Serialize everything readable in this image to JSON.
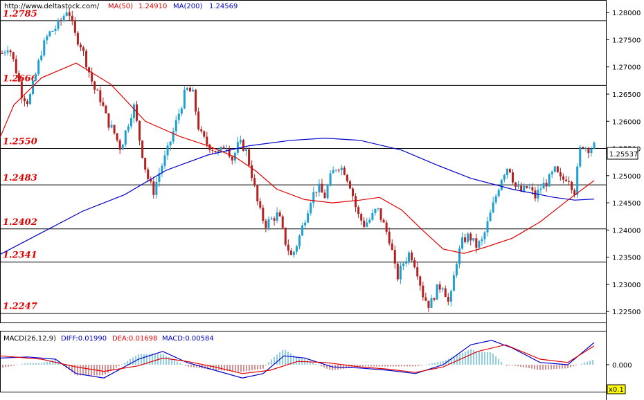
{
  "header": {
    "url": "http://www.deltastock.com/",
    "ma50_label": "MA(50)",
    "ma50_value": "1.24910",
    "ma200_label": "MA(200)",
    "ma200_value": "1.24569",
    "ma50_color": "#e00000",
    "ma200_color": "#0000cc"
  },
  "macd_header": {
    "title": "MACD(26,12,9)",
    "diff_label": "DIFF:0.01990",
    "dea_label": "DEA:0.01698",
    "macd_label": "MACD:0.00584"
  },
  "last_price_tag": "1.25537",
  "macd_axis_tick": "0.000",
  "macd_scale_badge": "x0.1",
  "chart_data": {
    "type": "candlestick",
    "ylim": [
      1.2235,
      1.2818
    ],
    "yticks": [
      "1.28000",
      "1.27500",
      "1.27000",
      "1.26500",
      "1.26000",
      "1.25500",
      "1.25000",
      "1.24500",
      "1.24000",
      "1.23500",
      "1.23000",
      "1.22500"
    ],
    "levels": [
      "1.2785",
      "1.2666",
      "1.2550",
      "1.2483",
      "1.2402",
      "1.2341",
      "1.2247"
    ],
    "colors": {
      "up": "#1e9fd0",
      "down": "#b52020",
      "ma50": "#e00000",
      "ma200": "#0000cc",
      "level_line": "#000000",
      "level_text": "#e00000"
    },
    "close_path": [
      1.2725,
      1.274,
      1.27,
      1.265,
      1.2635,
      1.268,
      1.273,
      1.276,
      1.277,
      1.2785,
      1.281,
      1.276,
      1.274,
      1.27,
      1.266,
      1.264,
      1.26,
      1.258,
      1.255,
      1.259,
      1.263,
      1.256,
      1.25,
      1.247,
      1.251,
      1.254,
      1.258,
      1.262,
      1.266,
      1.265,
      1.258,
      1.256,
      1.255,
      1.254,
      1.256,
      1.253,
      1.256,
      1.255,
      1.25,
      1.244,
      1.241,
      1.242,
      1.243,
      1.238,
      1.235,
      1.238,
      1.242,
      1.246,
      1.248,
      1.246,
      1.25,
      1.252,
      1.251,
      1.248,
      1.243,
      1.241,
      1.242,
      1.244,
      1.241,
      1.238,
      1.231,
      1.234,
      1.236,
      1.233,
      1.228,
      1.226,
      1.229,
      1.23,
      1.226,
      1.234,
      1.238,
      1.239,
      1.237,
      1.238,
      1.242,
      1.246,
      1.25,
      1.252,
      1.248,
      1.247,
      1.248,
      1.246,
      1.248,
      1.249,
      1.251,
      1.249,
      1.25,
      1.247,
      1.256,
      1.255,
      1.2554
    ],
    "ma50": [
      [
        0,
        1.257
      ],
      [
        20,
        1.263
      ],
      [
        60,
        1.268
      ],
      [
        110,
        1.2707
      ],
      [
        160,
        1.2668
      ],
      [
        210,
        1.26
      ],
      [
        260,
        1.2572
      ],
      [
        300,
        1.2555
      ],
      [
        340,
        1.2534
      ],
      [
        370,
        1.2508
      ],
      [
        400,
        1.2475
      ],
      [
        440,
        1.2456
      ],
      [
        480,
        1.245
      ],
      [
        520,
        1.2455
      ],
      [
        548,
        1.246
      ],
      [
        580,
        1.2437
      ],
      [
        610,
        1.24
      ],
      [
        640,
        1.2365
      ],
      [
        670,
        1.2357
      ],
      [
        700,
        1.2368
      ],
      [
        740,
        1.2385
      ],
      [
        780,
        1.2415
      ],
      [
        820,
        1.2455
      ],
      [
        858,
        1.2491
      ]
    ],
    "ma200": [
      [
        0,
        1.2355
      ],
      [
        60,
        1.2395
      ],
      [
        120,
        1.2435
      ],
      [
        180,
        1.2465
      ],
      [
        240,
        1.251
      ],
      [
        300,
        1.2538
      ],
      [
        360,
        1.2555
      ],
      [
        420,
        1.2565
      ],
      [
        470,
        1.2569
      ],
      [
        520,
        1.2565
      ],
      [
        580,
        1.2547
      ],
      [
        630,
        1.252
      ],
      [
        680,
        1.2495
      ],
      [
        740,
        1.2475
      ],
      [
        800,
        1.246
      ],
      [
        830,
        1.2455
      ],
      [
        858,
        1.2457
      ]
    ],
    "macd_diff": [
      [
        0,
        0.06
      ],
      [
        40,
        0.07
      ],
      [
        80,
        0.05
      ],
      [
        110,
        -0.08
      ],
      [
        150,
        -0.12
      ],
      [
        200,
        0.05
      ],
      [
        235,
        0.12
      ],
      [
        270,
        0.02
      ],
      [
        310,
        -0.05
      ],
      [
        350,
        -0.12
      ],
      [
        380,
        -0.08
      ],
      [
        410,
        0.08
      ],
      [
        440,
        0.06
      ],
      [
        480,
        -0.02
      ],
      [
        520,
        -0.03
      ],
      [
        560,
        -0.05
      ],
      [
        600,
        -0.08
      ],
      [
        640,
        0.0
      ],
      [
        680,
        0.18
      ],
      [
        710,
        0.22
      ],
      [
        740,
        0.15
      ],
      [
        780,
        0.02
      ],
      [
        820,
        0.0
      ],
      [
        858,
        0.2
      ]
    ],
    "macd_dea": [
      [
        0,
        0.08
      ],
      [
        60,
        0.05
      ],
      [
        110,
        -0.02
      ],
      [
        150,
        -0.06
      ],
      [
        200,
        -0.01
      ],
      [
        235,
        0.06
      ],
      [
        270,
        0.03
      ],
      [
        310,
        -0.02
      ],
      [
        350,
        -0.08
      ],
      [
        390,
        -0.05
      ],
      [
        430,
        0.03
      ],
      [
        470,
        0.02
      ],
      [
        520,
        -0.02
      ],
      [
        560,
        -0.04
      ],
      [
        600,
        -0.07
      ],
      [
        640,
        -0.02
      ],
      [
        690,
        0.12
      ],
      [
        730,
        0.18
      ],
      [
        780,
        0.05
      ],
      [
        820,
        0.02
      ],
      [
        858,
        0.17
      ]
    ]
  }
}
